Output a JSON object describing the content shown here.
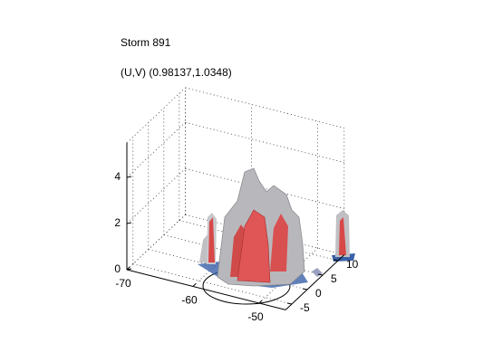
{
  "chart_data": {
    "type": "isosurface",
    "title": "Storm 891",
    "subtitle": "(U,V) (0.98137,1.0348)",
    "xlim": [
      -70,
      -46
    ],
    "xticks": [
      -70,
      -60,
      -50
    ],
    "ylim": [
      -7,
      12
    ],
    "yticks": [
      -5,
      0,
      5,
      10
    ],
    "zlim": [
      0,
      5.5
    ],
    "zticks": [
      0,
      2,
      4
    ],
    "grid": true
  }
}
